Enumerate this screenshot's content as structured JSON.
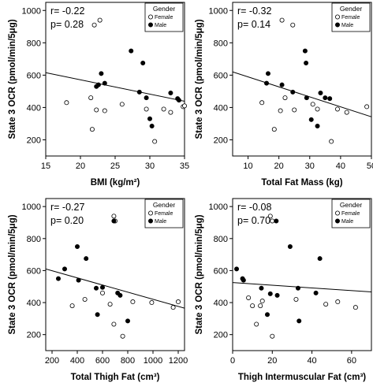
{
  "chart_data": [
    {
      "type": "scatter",
      "xlabel": "BMI (kg/m²)",
      "ylabel": "State 3 OCR (pmol/min/5μg)",
      "annotation_r": "r= -0.22",
      "annotation_p": "p= 0.28",
      "legend": {
        "title": "Gender",
        "placement": "top-right",
        "entries": [
          "Female",
          "Male"
        ]
      },
      "xlim": [
        15,
        35
      ],
      "ylim": [
        100,
        1050
      ],
      "xticks": [
        "15",
        "20",
        "25",
        "30",
        "35"
      ],
      "yticks": [
        "200",
        "400",
        "600",
        "800",
        "1000"
      ],
      "fit": {
        "x": [
          15,
          36
        ],
        "y": [
          615,
          430
        ]
      },
      "series": [
        {
          "name": "Female",
          "points": [
            [
              18,
              430
            ],
            [
              21.5,
              460
            ],
            [
              21.7,
              265
            ],
            [
              22,
              910
            ],
            [
              22.3,
              385
            ],
            [
              22.8,
              940
            ],
            [
              23.5,
              380
            ],
            [
              26,
              420
            ],
            [
              29.5,
              390
            ],
            [
              30.7,
              190
            ],
            [
              32,
              390
            ],
            [
              33,
              370
            ],
            [
              34.8,
              405
            ],
            [
              35,
              410
            ]
          ]
        },
        {
          "name": "Male",
          "points": [
            [
              22.3,
              530
            ],
            [
              22.6,
              540
            ],
            [
              23,
              610
            ],
            [
              23.5,
              550
            ],
            [
              27.3,
              750
            ],
            [
              28.5,
              495
            ],
            [
              29,
              675
            ],
            [
              29.5,
              460
            ],
            [
              30,
              330
            ],
            [
              30.3,
              285
            ],
            [
              31,
              905
            ],
            [
              31.5,
              930
            ],
            [
              33,
              490
            ],
            [
              34,
              455
            ],
            [
              34.2,
              445
            ]
          ]
        }
      ]
    },
    {
      "type": "scatter",
      "xlabel": "Total Fat Mass (kg)",
      "ylabel": "State 3 OCR (pmol/min/5μg)",
      "annotation_r": "r= -0.32",
      "annotation_p": "p= 0.14",
      "legend": {
        "title": "Gender",
        "placement": "top-right",
        "entries": [
          "Female",
          "Male"
        ]
      },
      "xlim": [
        5,
        50
      ],
      "ylim": [
        100,
        1050
      ],
      "xticks": [
        "10",
        "20",
        "30",
        "40",
        "50"
      ],
      "yticks": [
        "200",
        "400",
        "600",
        "800",
        "1000"
      ],
      "fit": {
        "x": [
          5,
          52
        ],
        "y": [
          620,
          330
        ]
      },
      "series": [
        {
          "name": "Female",
          "points": [
            [
              14.5,
              430
            ],
            [
              18.5,
              265
            ],
            [
              20.5,
              380
            ],
            [
              21,
              940
            ],
            [
              22,
              460
            ],
            [
              24.5,
              910
            ],
            [
              25,
              385
            ],
            [
              31,
              420
            ],
            [
              32.5,
              390
            ],
            [
              37,
              190
            ],
            [
              39,
              390
            ],
            [
              42,
              370
            ],
            [
              48.5,
              405
            ]
          ]
        },
        {
          "name": "Male",
          "points": [
            [
              16,
              550
            ],
            [
              16.5,
              610
            ],
            [
              21,
              540
            ],
            [
              24.5,
              495
            ],
            [
              28.5,
              750
            ],
            [
              28.8,
              675
            ],
            [
              29,
              460
            ],
            [
              30.5,
              325
            ],
            [
              32.5,
              285
            ],
            [
              33.5,
              490
            ],
            [
              35,
              460
            ],
            [
              36.5,
              455
            ]
          ]
        }
      ]
    },
    {
      "type": "scatter",
      "xlabel": "Total Thigh Fat (cm³)",
      "ylabel": "State 3 OCR (pmol/min/5μg)",
      "annotation_r": "r= -0.27",
      "annotation_p": "p= 0.20",
      "legend": {
        "title": "Gender",
        "placement": "top-right",
        "entries": [
          "Female",
          "Male"
        ]
      },
      "xlim": [
        150,
        1250
      ],
      "ylim": [
        100,
        1050
      ],
      "xticks": [
        "200",
        "400",
        "600",
        "800",
        "1000",
        "1200"
      ],
      "yticks": [
        "200",
        "400",
        "600",
        "800",
        "1000"
      ],
      "fit": {
        "x": [
          150,
          1250
        ],
        "y": [
          610,
          365
        ]
      },
      "series": [
        {
          "name": "Female",
          "points": [
            [
              360,
              380
            ],
            [
              460,
              420
            ],
            [
              600,
              460
            ],
            [
              660,
              390
            ],
            [
              690,
              940
            ],
            [
              700,
              910
            ],
            [
              690,
              265
            ],
            [
              760,
              190
            ],
            [
              840,
              405
            ],
            [
              990,
              400
            ],
            [
              1160,
              370
            ],
            [
              1200,
              405
            ]
          ]
        },
        {
          "name": "Male",
          "points": [
            [
              250,
              550
            ],
            [
              300,
              610
            ],
            [
              400,
              750
            ],
            [
              410,
              540
            ],
            [
              470,
              675
            ],
            [
              550,
              490
            ],
            [
              560,
              325
            ],
            [
              600,
              495
            ],
            [
              690,
              910
            ],
            [
              720,
              460
            ],
            [
              740,
              445
            ],
            [
              800,
              285
            ]
          ]
        }
      ]
    },
    {
      "type": "scatter",
      "xlabel": "Thigh Intermuscular Fat (cm³)",
      "ylabel": "State 3 OCR (pmol/min/5μg)",
      "annotation_r": "r= -0.08",
      "annotation_p": "p= 0.70",
      "legend": {
        "title": "Gender",
        "placement": "top-right",
        "entries": [
          "Female",
          "Male"
        ]
      },
      "xlim": [
        0,
        70
      ],
      "ylim": [
        100,
        1050
      ],
      "xticks": [
        "0",
        "20",
        "40",
        "60"
      ],
      "yticks": [
        "200",
        "400",
        "600",
        "800",
        "1000"
      ],
      "fit": {
        "x": [
          0,
          72
        ],
        "y": [
          525,
          465
        ]
      },
      "series": [
        {
          "name": "Female",
          "points": [
            [
              8,
              430
            ],
            [
              10,
              380
            ],
            [
              12,
              265
            ],
            [
              14,
              380
            ],
            [
              15,
              410
            ],
            [
              19,
              940
            ],
            [
              20,
              910
            ],
            [
              20,
              190
            ],
            [
              32,
              420
            ],
            [
              47,
              390
            ],
            [
              53,
              405
            ],
            [
              62,
              370
            ]
          ]
        },
        {
          "name": "Male",
          "points": [
            [
              2,
              610
            ],
            [
              5,
              550
            ],
            [
              5.5,
              540
            ],
            [
              14.5,
              490
            ],
            [
              17.5,
              325
            ],
            [
              19,
              455
            ],
            [
              22,
              910
            ],
            [
              22.5,
              445
            ],
            [
              29,
              750
            ],
            [
              33,
              490
            ],
            [
              33.5,
              285
            ],
            [
              42,
              460
            ],
            [
              44,
              675
            ]
          ]
        }
      ]
    }
  ]
}
